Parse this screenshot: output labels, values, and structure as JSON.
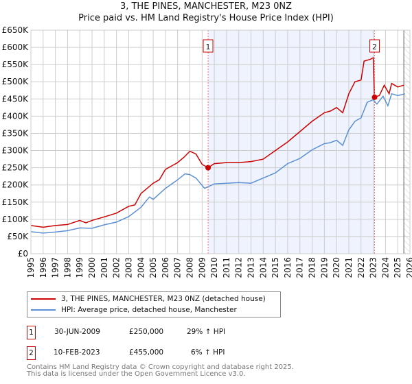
{
  "chart_data": {
    "type": "line",
    "title": "3, THE PINES, MANCHESTER, M23 0NZ",
    "subtitle": "Price paid vs. HM Land Registry's House Price Index (HPI)",
    "xlabel": "",
    "ylabel": "",
    "xlim": [
      1995,
      2026
    ],
    "ylim": [
      0,
      650000
    ],
    "grid": true,
    "yticks": [
      0,
      50000,
      100000,
      150000,
      200000,
      250000,
      300000,
      350000,
      400000,
      450000,
      500000,
      550000,
      600000,
      650000
    ],
    "ytick_labels": [
      "£0",
      "£50K",
      "£100K",
      "£150K",
      "£200K",
      "£250K",
      "£300K",
      "£350K",
      "£400K",
      "£450K",
      "£500K",
      "£550K",
      "£600K",
      "£650K"
    ],
    "xtick_labels": [
      "1995",
      "1996",
      "1997",
      "1998",
      "1999",
      "2000",
      "2001",
      "2002",
      "2003",
      "2004",
      "2005",
      "2006",
      "2007",
      "2008",
      "2009",
      "2010",
      "2011",
      "2012",
      "2013",
      "2014",
      "2015",
      "2016",
      "2017",
      "2018",
      "2019",
      "2020",
      "2021",
      "2022",
      "2023",
      "2024",
      "2025",
      "2026"
    ],
    "series": [
      {
        "name": "3, THE PINES, MANCHESTER, M23 0NZ (detached house)",
        "color": "#cc0000",
        "x": [
          1995,
          1996,
          1997,
          1998,
          1999,
          1999.5,
          2000,
          2001,
          2002,
          2003,
          2003.5,
          2004,
          2004.5,
          2005,
          2005.5,
          2006,
          2007,
          2007.5,
          2008,
          2008.5,
          2009,
          2009.49,
          2010,
          2011,
          2012,
          2013,
          2014,
          2015,
          2016,
          2017,
          2018,
          2019,
          2019.5,
          2020,
          2020.5,
          2021,
          2021.5,
          2022,
          2022.25,
          2022.75,
          2023.0,
          2023.11,
          2023.5,
          2023.9,
          2024.3,
          2024.5,
          2025,
          2025.5
        ],
        "y": [
          82000,
          77000,
          82000,
          85000,
          97000,
          90000,
          97000,
          107000,
          118000,
          138000,
          142000,
          175000,
          190000,
          205000,
          215000,
          245000,
          265000,
          280000,
          298000,
          290000,
          260000,
          250000,
          262000,
          265000,
          265000,
          268000,
          275000,
          300000,
          325000,
          355000,
          385000,
          410000,
          415000,
          425000,
          410000,
          465000,
          500000,
          505000,
          560000,
          565000,
          570000,
          455000,
          460000,
          490000,
          465000,
          495000,
          485000,
          490000
        ]
      },
      {
        "name": "HPI: Average price, detached house, Manchester",
        "color": "#5b8fd4",
        "x": [
          1995,
          1996,
          1997,
          1998,
          1999,
          2000,
          2001,
          2002,
          2003,
          2004,
          2004.7,
          2005,
          2006,
          2007,
          2007.6,
          2008,
          2008.5,
          2009.2,
          2009.5,
          2010,
          2011,
          2012,
          2013,
          2014,
          2015,
          2016,
          2017,
          2018,
          2019,
          2019.5,
          2020,
          2020.5,
          2021,
          2021.5,
          2022,
          2022.5,
          2023,
          2023.3,
          2023.8,
          2024.2,
          2024.5,
          2025,
          2025.6
        ],
        "y": [
          64000,
          60000,
          63000,
          67000,
          75000,
          74000,
          84000,
          92000,
          108000,
          135000,
          165000,
          158000,
          190000,
          215000,
          232000,
          230000,
          220000,
          190000,
          195000,
          203000,
          205000,
          207000,
          205000,
          220000,
          235000,
          262000,
          277000,
          302000,
          320000,
          323000,
          330000,
          315000,
          360000,
          385000,
          395000,
          440000,
          448000,
          435000,
          458000,
          430000,
          465000,
          460000,
          465000
        ]
      }
    ],
    "annotations": [
      {
        "label": "1",
        "x": 2009.49,
        "y": 250000
      },
      {
        "label": "2",
        "x": 2023.11,
        "y": 455000
      }
    ],
    "shaded_range": [
      2009.49,
      2023.11
    ],
    "forecast_start": 2025.5
  },
  "legend": {
    "red": "3, THE PINES, MANCHESTER, M23 0NZ (detached house)",
    "blue": "HPI: Average price, detached house, Manchester"
  },
  "transactions": [
    {
      "num": "1",
      "date": "30-JUN-2009",
      "price": "£250,000",
      "hpi": "29% ↑ HPI"
    },
    {
      "num": "2",
      "date": "10-FEB-2023",
      "price": "£455,000",
      "hpi": "6% ↑ HPI"
    }
  ],
  "footer": {
    "line1": "Contains HM Land Registry data © Crown copyright and database right 2025.",
    "line2": "This data is licensed under the Open Government Licence v3.0."
  }
}
